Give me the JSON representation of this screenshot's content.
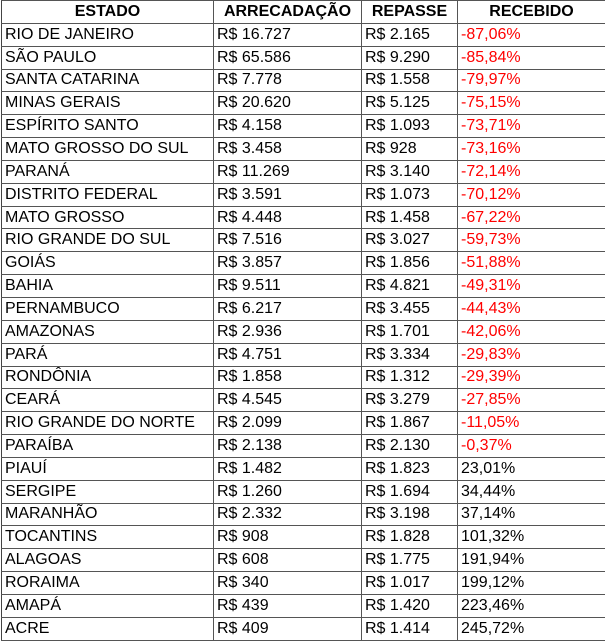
{
  "table": {
    "headers": [
      "ESTADO",
      "ARRECADAÇÃO",
      "REPASSE",
      "RECEBIDO"
    ],
    "negative_color": "#ff0000",
    "rows": [
      [
        "RIO DE JANEIRO",
        "R$ 16.727",
        "R$ 2.165",
        "-87,06%"
      ],
      [
        "SÃO PAULO",
        "R$ 65.586",
        "R$ 9.290",
        "-85,84%"
      ],
      [
        "SANTA CATARINA",
        "R$ 7.778",
        "R$ 1.558",
        "-79,97%"
      ],
      [
        "MINAS GERAIS",
        "R$ 20.620",
        "R$ 5.125",
        "-75,15%"
      ],
      [
        "ESPÍRITO SANTO",
        "R$ 4.158",
        "R$ 1.093",
        "-73,71%"
      ],
      [
        "MATO GROSSO DO SUL",
        "R$ 3.458",
        "R$ 928",
        "-73,16%"
      ],
      [
        "PARANÁ",
        "R$ 11.269",
        "R$ 3.140",
        "-72,14%"
      ],
      [
        "DISTRITO FEDERAL",
        "R$ 3.591",
        "R$ 1.073",
        "-70,12%"
      ],
      [
        "MATO GROSSO",
        "R$ 4.448",
        "R$ 1.458",
        "-67,22%"
      ],
      [
        "RIO GRANDE DO SUL",
        "R$ 7.516",
        "R$ 3.027",
        "-59,73%"
      ],
      [
        "GOIÁS",
        "R$ 3.857",
        "R$ 1.856",
        "-51,88%"
      ],
      [
        "BAHIA",
        "R$ 9.511",
        "R$ 4.821",
        "-49,31%"
      ],
      [
        "PERNAMBUCO",
        "R$ 6.217",
        "R$ 3.455",
        "-44,43%"
      ],
      [
        "AMAZONAS",
        "R$ 2.936",
        "R$ 1.701",
        "-42,06%"
      ],
      [
        "PARÁ",
        "R$ 4.751",
        "R$ 3.334",
        "-29,83%"
      ],
      [
        "RONDÔNIA",
        "R$ 1.858",
        "R$ 1.312",
        "-29,39%"
      ],
      [
        "CEARÁ",
        "R$ 4.545",
        "R$ 3.279",
        "-27,85%"
      ],
      [
        "RIO GRANDE DO NORTE",
        "R$ 2.099",
        "R$ 1.867",
        "-11,05%"
      ],
      [
        "PARAÍBA",
        "R$ 2.138",
        "R$ 2.130",
        "-0,37%"
      ],
      [
        "PIAUÍ",
        "R$ 1.482",
        "R$ 1.823",
        "23,01%"
      ],
      [
        "SERGIPE",
        "R$ 1.260",
        "R$ 1.694",
        "34,44%"
      ],
      [
        "MARANHÃO",
        "R$ 2.332",
        "R$ 3.198",
        "37,14%"
      ],
      [
        "TOCANTINS",
        "R$ 908",
        "R$ 1.828",
        "101,32%"
      ],
      [
        "ALAGOAS",
        "R$ 608",
        "R$ 1.775",
        "191,94%"
      ],
      [
        "RORAIMA",
        "R$ 340",
        "R$ 1.017",
        "199,12%"
      ],
      [
        "AMAPÁ",
        "R$ 439",
        "R$ 1.420",
        "223,46%"
      ],
      [
        "ACRE",
        "R$ 409",
        "R$ 1.414",
        "245,72%"
      ]
    ]
  }
}
